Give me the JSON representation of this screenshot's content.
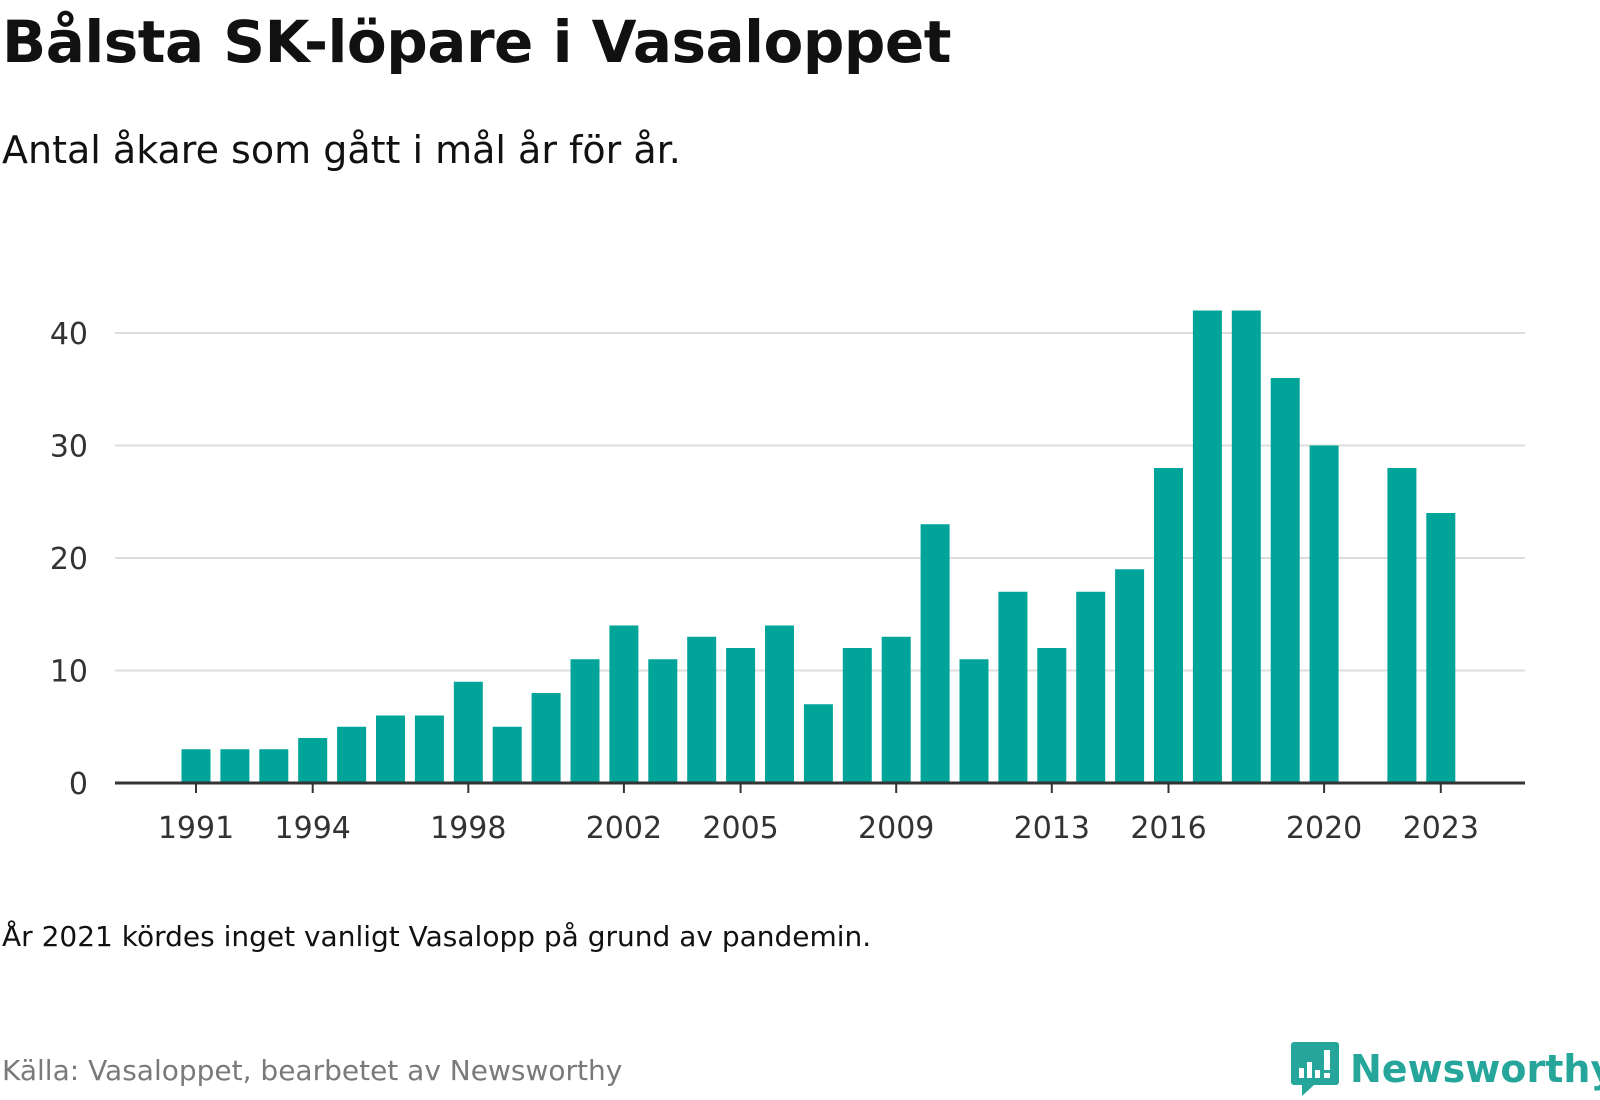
{
  "title": "Bålsta SK-löpare i Vasaloppet",
  "subtitle": "Antal åkare som gått i mål år för år.",
  "note": "År 2021 kördes inget vanligt Vasalopp på grund av pandemin.",
  "source": "Källa: Vasaloppet, bearbetet av Newsworthy",
  "brand": {
    "name": "Newsworthy",
    "icon": "newsworthy-logo-icon",
    "color": "#26a69a"
  },
  "colors": {
    "bar": "#00a499",
    "grid": "#dddddd",
    "axis": "#333333"
  },
  "chart_data": {
    "type": "bar",
    "x": [
      1991,
      1992,
      1993,
      1994,
      1995,
      1996,
      1997,
      1998,
      1999,
      2000,
      2001,
      2002,
      2003,
      2004,
      2005,
      2006,
      2007,
      2008,
      2009,
      2010,
      2011,
      2012,
      2013,
      2014,
      2015,
      2016,
      2017,
      2018,
      2019,
      2020,
      2021,
      2022,
      2023
    ],
    "values": [
      3,
      3,
      3,
      4,
      5,
      6,
      6,
      9,
      5,
      8,
      11,
      14,
      11,
      13,
      12,
      14,
      7,
      12,
      13,
      23,
      11,
      17,
      12,
      17,
      19,
      28,
      42,
      42,
      36,
      30,
      null,
      28,
      24
    ],
    "x_ticks": [
      1991,
      1994,
      1998,
      2002,
      2005,
      2009,
      2013,
      2016,
      2020,
      2023
    ],
    "y_ticks": [
      0,
      10,
      20,
      30,
      40
    ],
    "ylim": [
      0,
      42
    ],
    "grid": true,
    "legend": "none"
  }
}
